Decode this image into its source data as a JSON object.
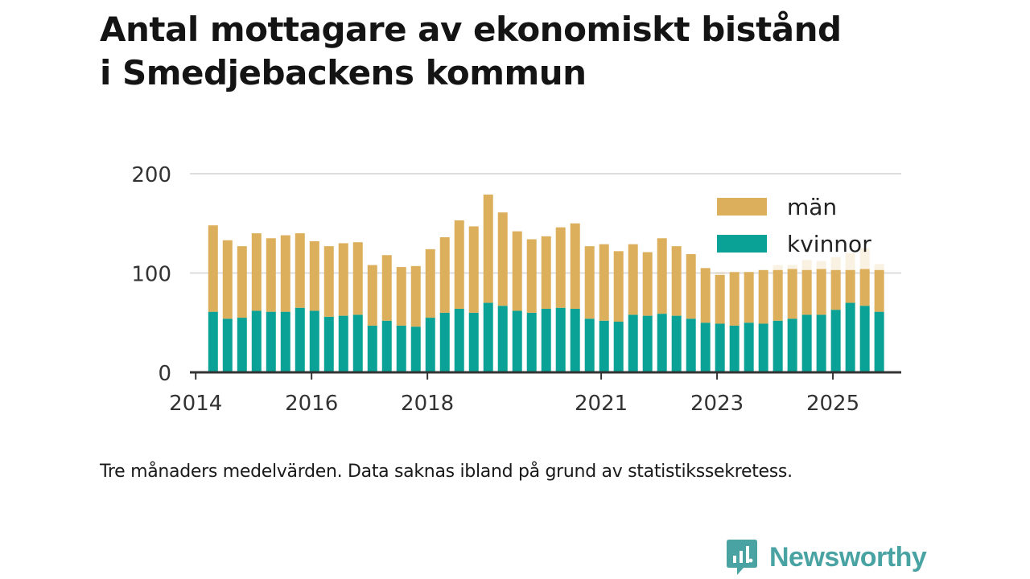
{
  "title": {
    "line1": "Antal mottagare av ekonomiskt bistånd",
    "line2": "i Smedjebackens kommun"
  },
  "caption": "Tre månaders medelvärden. Data saknas ibland på grund av statistikssekretess.",
  "brand": {
    "name": "Newsworthy",
    "icon": "newsworthy-logo-icon",
    "color": "#4aa3a3"
  },
  "colors": {
    "man": "#dcaf5c",
    "kvinnor": "#0aa196",
    "grid": "#dddddd",
    "axis": "#333333"
  },
  "chart_data": {
    "type": "bar",
    "stacked": true,
    "title": "Antal mottagare av ekonomiskt bistånd i Smedjebackens kommun",
    "xlabel": "",
    "ylabel": "",
    "ylim": [
      0,
      200
    ],
    "yticks": [
      0,
      100,
      200
    ],
    "grid": true,
    "legend_position": "top-right",
    "x_domain": [
      2013.9,
      2026.18
    ],
    "xticks": [
      {
        "label": "2014",
        "year": 2014.0
      },
      {
        "label": "2016",
        "year": 2016.0
      },
      {
        "label": "2018",
        "year": 2018.0
      },
      {
        "label": "2021",
        "year": 2021.0
      },
      {
        "label": "2023",
        "year": 2023.0
      },
      {
        "label": "2025",
        "year": 2025.0
      }
    ],
    "legend": [
      {
        "name": "män",
        "key": "man"
      },
      {
        "name": "kvinnor",
        "key": "kvinnor"
      }
    ],
    "x": [
      2014.3,
      2014.55,
      2014.8,
      2015.05,
      2015.3,
      2015.55,
      2015.8,
      2016.05,
      2016.3,
      2016.55,
      2016.8,
      2017.05,
      2017.3,
      2017.55,
      2017.8,
      2018.05,
      2018.3,
      2018.55,
      2018.8,
      2019.05,
      2019.3,
      2019.55,
      2019.8,
      2020.05,
      2020.3,
      2020.55,
      2020.8,
      2021.05,
      2021.3,
      2021.55,
      2021.8,
      2022.05,
      2022.3,
      2022.55,
      2022.8,
      2023.05,
      2023.3,
      2023.55,
      2023.8,
      2024.05,
      2024.3,
      2024.55,
      2024.8,
      2025.05,
      2025.3,
      2025.55,
      2025.8
    ],
    "series": [
      {
        "name": "kvinnor",
        "values": [
          61,
          54,
          55,
          62,
          61,
          61,
          65,
          62,
          56,
          57,
          58,
          47,
          52,
          47,
          46,
          55,
          60,
          64,
          60,
          70,
          67,
          62,
          60,
          64,
          65,
          64,
          54,
          52,
          51,
          58,
          57,
          59,
          57,
          54,
          50,
          49,
          47,
          50,
          49,
          52,
          54,
          58,
          58,
          63,
          70,
          67,
          61
        ]
      },
      {
        "name": "män",
        "values": [
          87,
          79,
          72,
          78,
          74,
          77,
          75,
          70,
          71,
          73,
          73,
          61,
          66,
          59,
          61,
          69,
          76,
          89,
          87,
          109,
          94,
          80,
          74,
          73,
          81,
          86,
          73,
          77,
          71,
          71,
          64,
          76,
          70,
          65,
          55,
          49,
          54,
          51,
          54,
          51,
          50,
          45,
          46,
          40,
          33,
          37,
          42
        ]
      }
    ],
    "faded_totals": [
      null,
      null,
      null,
      null,
      null,
      null,
      null,
      null,
      null,
      null,
      null,
      null,
      null,
      null,
      null,
      null,
      null,
      null,
      null,
      null,
      null,
      null,
      null,
      null,
      null,
      null,
      null,
      null,
      null,
      null,
      null,
      null,
      null,
      null,
      null,
      101,
      null,
      null,
      null,
      108,
      108,
      113,
      112,
      116,
      120,
      125,
      109
    ]
  }
}
